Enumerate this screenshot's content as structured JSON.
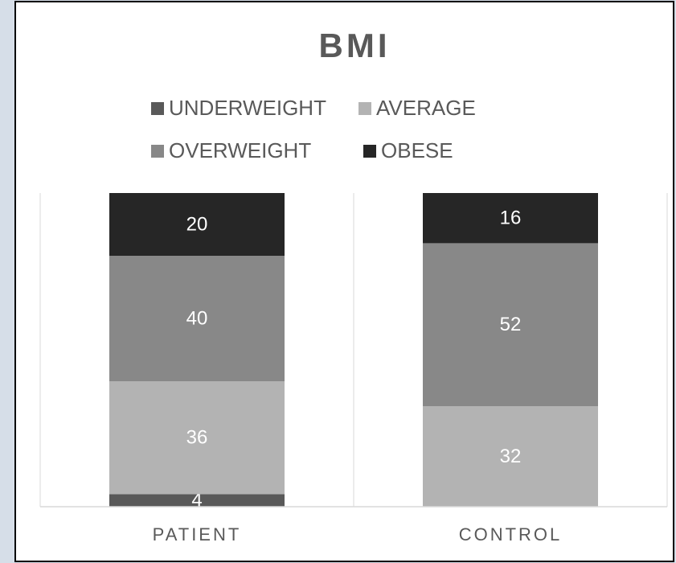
{
  "chart_data": {
    "type": "stacked_bar",
    "title": "BMI",
    "categories": [
      "PATIENT",
      "CONTROL"
    ],
    "series": [
      {
        "name": "UNDERWEIGHT",
        "color": "#595959",
        "values": [
          4,
          null
        ]
      },
      {
        "name": "AVERAGE",
        "color": "#b3b3b3",
        "values": [
          36,
          32
        ]
      },
      {
        "name": "OVERWEIGHT",
        "color": "#888888",
        "values": [
          40,
          52
        ]
      },
      {
        "name": "OBESE",
        "color": "#262626",
        "values": [
          20,
          16
        ]
      }
    ],
    "ylim": [
      0,
      100
    ],
    "legend": "top"
  }
}
